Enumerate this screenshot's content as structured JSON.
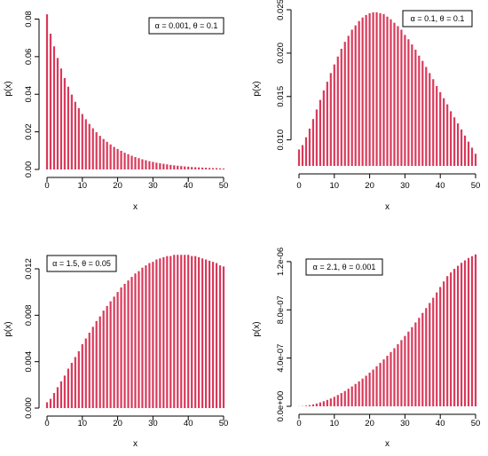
{
  "chart_data": [
    {
      "type": "bar",
      "legend": "α = 0.001, θ = 0.1",
      "legend_position": "top-right",
      "xlabel": "x",
      "ylabel": "p(x)",
      "xlim": [
        0,
        50
      ],
      "ylim": [
        0,
        0.084
      ],
      "x_ticks": [
        0,
        10,
        20,
        30,
        40,
        50
      ],
      "y_ticks": [
        0.0,
        0.02,
        0.04,
        0.06,
        0.08
      ],
      "y_tick_labels": [
        "0.00",
        "0.02",
        "0.04",
        "0.06",
        "0.08"
      ],
      "bar_color": "#d9395a",
      "grid": false,
      "x": [
        0,
        1,
        2,
        3,
        4,
        5,
        6,
        7,
        8,
        9,
        10,
        11,
        12,
        13,
        14,
        15,
        16,
        17,
        18,
        19,
        20,
        21,
        22,
        23,
        24,
        25,
        26,
        27,
        28,
        29,
        30,
        31,
        32,
        33,
        34,
        35,
        36,
        37,
        38,
        39,
        40,
        41,
        42,
        43,
        44,
        45,
        46,
        47,
        48,
        49,
        50
      ],
      "values": [
        0.0825,
        0.0722,
        0.0655,
        0.0593,
        0.0537,
        0.0486,
        0.044,
        0.0398,
        0.036,
        0.0326,
        0.0295,
        0.0267,
        0.0242,
        0.0219,
        0.0198,
        0.0179,
        0.0162,
        0.0147,
        0.0133,
        0.012,
        0.0109,
        0.0099,
        0.0089,
        0.0081,
        0.0073,
        0.0066,
        0.006,
        0.0054,
        0.0049,
        0.0044,
        0.004,
        0.0036,
        0.0033,
        0.003,
        0.0027,
        0.0024,
        0.0022,
        0.002,
        0.0018,
        0.0016,
        0.0015,
        0.0013,
        0.0012,
        0.0011,
        0.001,
        0.0009,
        0.0008,
        0.0007,
        0.0007,
        0.0006,
        0.0005
      ]
    },
    {
      "type": "bar",
      "legend": "α = 0.1, θ = 0.1",
      "legend_position": "top-right",
      "xlabel": "x",
      "ylabel": "p(x)",
      "xlim": [
        0,
        50
      ],
      "ylim": [
        0.007,
        0.0251
      ],
      "x_ticks": [
        0,
        10,
        20,
        30,
        40,
        50
      ],
      "y_ticks": [
        0.01,
        0.015,
        0.02,
        0.025
      ],
      "y_tick_labels": [
        "0.010",
        "0.015",
        "0.020",
        "0.025"
      ],
      "bar_color": "#d9395a",
      "grid": false,
      "x": [
        0,
        1,
        2,
        3,
        4,
        5,
        6,
        7,
        8,
        9,
        10,
        11,
        12,
        13,
        14,
        15,
        16,
        17,
        18,
        19,
        20,
        21,
        22,
        23,
        24,
        25,
        26,
        27,
        28,
        29,
        30,
        31,
        32,
        33,
        34,
        35,
        36,
        37,
        38,
        39,
        40,
        41,
        42,
        43,
        44,
        45,
        46,
        47,
        48,
        49,
        50
      ],
      "values": [
        0.0089,
        0.0094,
        0.0103,
        0.0113,
        0.0124,
        0.0135,
        0.0146,
        0.0157,
        0.0167,
        0.0177,
        0.0187,
        0.0196,
        0.0205,
        0.0213,
        0.022,
        0.0227,
        0.0232,
        0.0237,
        0.0241,
        0.0244,
        0.0246,
        0.0247,
        0.0247,
        0.0246,
        0.0245,
        0.0242,
        0.0239,
        0.0235,
        0.0231,
        0.0227,
        0.0221,
        0.0216,
        0.021,
        0.0204,
        0.0197,
        0.0191,
        0.0184,
        0.0177,
        0.017,
        0.0162,
        0.0155,
        0.0148,
        0.0141,
        0.0133,
        0.0126,
        0.0119,
        0.0112,
        0.0105,
        0.0098,
        0.0091,
        0.0084
      ]
    },
    {
      "type": "bar",
      "legend": "α = 1.5, θ = 0.05",
      "legend_position": "top-left",
      "xlabel": "x",
      "ylabel": "p(x)",
      "xlim": [
        0,
        50
      ],
      "ylim": [
        0,
        0.0133
      ],
      "x_ticks": [
        0,
        10,
        20,
        30,
        40,
        50
      ],
      "y_ticks": [
        0.0,
        0.004,
        0.008,
        0.012
      ],
      "y_tick_labels": [
        "0.000",
        "0.004",
        "0.008",
        "0.012"
      ],
      "bar_color": "#d9395a",
      "grid": false,
      "x": [
        0,
        1,
        2,
        3,
        4,
        5,
        6,
        7,
        8,
        9,
        10,
        11,
        12,
        13,
        14,
        15,
        16,
        17,
        18,
        19,
        20,
        21,
        22,
        23,
        24,
        25,
        26,
        27,
        28,
        29,
        30,
        31,
        32,
        33,
        34,
        35,
        36,
        37,
        38,
        39,
        40,
        41,
        42,
        43,
        44,
        45,
        46,
        47,
        48,
        49,
        50
      ],
      "values": [
        0.0005,
        0.0008,
        0.0013,
        0.0018,
        0.0023,
        0.0028,
        0.0034,
        0.0039,
        0.0044,
        0.0049,
        0.0055,
        0.006,
        0.0065,
        0.007,
        0.0075,
        0.0079,
        0.0084,
        0.0088,
        0.0092,
        0.0096,
        0.01,
        0.0104,
        0.0107,
        0.011,
        0.0113,
        0.0116,
        0.0118,
        0.0121,
        0.0123,
        0.0125,
        0.0126,
        0.0128,
        0.0129,
        0.013,
        0.0131,
        0.0131,
        0.0132,
        0.0132,
        0.0132,
        0.0132,
        0.0132,
        0.0131,
        0.0131,
        0.013,
        0.0129,
        0.0128,
        0.0127,
        0.0126,
        0.0125,
        0.0123,
        0.0122
      ]
    },
    {
      "type": "bar",
      "legend": "α = 2.1, θ = 0.001",
      "legend_position": "top-left",
      "xlabel": "x",
      "ylabel": "p(x)",
      "xlim": [
        0,
        50
      ],
      "ylim": [
        0,
        1.28e-06
      ],
      "x_ticks": [
        0,
        10,
        20,
        30,
        40,
        50
      ],
      "y_ticks": [
        0,
        4e-07,
        8e-07,
        1.2e-06
      ],
      "y_tick_labels": [
        "0.0e+00",
        "4.0e-07",
        "8.0e-07",
        "1.2e-06"
      ],
      "bar_color": "#d9395a",
      "grid": false,
      "x": [
        0,
        1,
        2,
        3,
        4,
        5,
        6,
        7,
        8,
        9,
        10,
        11,
        12,
        13,
        14,
        15,
        16,
        17,
        18,
        19,
        20,
        21,
        22,
        23,
        24,
        25,
        26,
        27,
        28,
        29,
        30,
        31,
        32,
        33,
        34,
        35,
        36,
        37,
        38,
        39,
        40,
        41,
        42,
        43,
        44,
        45,
        46,
        47,
        48,
        49,
        50
      ],
      "values": [
        1e-09,
        2e-09,
        5.5e-09,
        1e-08,
        1.6e-08,
        2.3e-08,
        3.2e-08,
        4.2e-08,
        5.3e-08,
        6.5e-08,
        7.9e-08,
        9.4e-08,
        1.1e-07,
        1.27e-07,
        1.46e-07,
        1.65e-07,
        1.86e-07,
        2.07e-07,
        2.3e-07,
        2.54e-07,
        2.79e-07,
        3.05e-07,
        3.32e-07,
        3.6e-07,
        3.89e-07,
        4.19e-07,
        4.5e-07,
        4.82e-07,
        5.15e-07,
        5.49e-07,
        5.84e-07,
        6.2e-07,
        6.57e-07,
        6.95e-07,
        7.34e-07,
        7.74e-07,
        8.15e-07,
        8.57e-07,
        9e-07,
        9.44e-07,
        9.89e-07,
        1.035e-06,
        1.08e-06,
        1.11e-06,
        1.14e-06,
        1.165e-06,
        1.19e-06,
        1.21e-06,
        1.23e-06,
        1.245e-06,
        1.26e-06
      ]
    }
  ]
}
